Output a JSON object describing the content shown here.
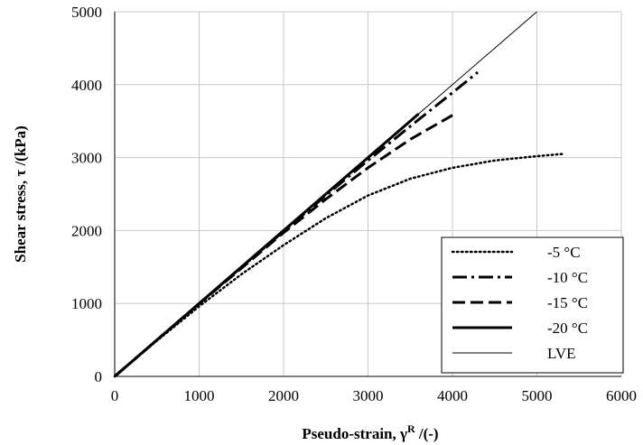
{
  "chart_data": {
    "type": "line",
    "title": "",
    "xlabel": "Pseudo-strain, γ",
    "xlabel_sup": "R",
    "xlabel_suffix": " /(-)",
    "ylabel": "Shear stress, τ /(kPa)",
    "xlim": [
      0,
      6000
    ],
    "ylim": [
      0,
      5000
    ],
    "xticks": [
      0,
      1000,
      2000,
      3000,
      4000,
      5000,
      6000
    ],
    "yticks": [
      0,
      1000,
      2000,
      3000,
      4000,
      5000
    ],
    "grid": true,
    "legend_position": "bottom-right",
    "series": [
      {
        "name": "-5 °C",
        "style": "dotted",
        "color": "#000000",
        "x": [
          0,
          500,
          1000,
          1500,
          2000,
          2500,
          3000,
          3500,
          4000,
          4500,
          5000,
          5300
        ],
        "y": [
          0,
          490,
          960,
          1400,
          1800,
          2170,
          2480,
          2710,
          2860,
          2960,
          3020,
          3050
        ]
      },
      {
        "name": "-10 °C",
        "style": "dash-dot",
        "color": "#000000",
        "x": [
          0,
          1000,
          2000,
          2500,
          3000,
          3500,
          4000,
          4300
        ],
        "y": [
          0,
          1000,
          1990,
          2480,
          2960,
          3430,
          3890,
          4170
        ]
      },
      {
        "name": "-15 °C",
        "style": "dashed",
        "color": "#000000",
        "x": [
          0,
          1000,
          2000,
          2500,
          3000,
          3500,
          4000
        ],
        "y": [
          0,
          995,
          1970,
          2430,
          2860,
          3250,
          3580
        ]
      },
      {
        "name": "-20 °C",
        "style": "solid-thick",
        "color": "#000000",
        "x": [
          0,
          1000,
          2000,
          3000,
          3600
        ],
        "y": [
          0,
          1000,
          2000,
          3000,
          3600
        ]
      },
      {
        "name": "LVE",
        "style": "solid-thin",
        "color": "#000000",
        "x": [
          0,
          5000
        ],
        "y": [
          0,
          5000
        ]
      }
    ]
  }
}
